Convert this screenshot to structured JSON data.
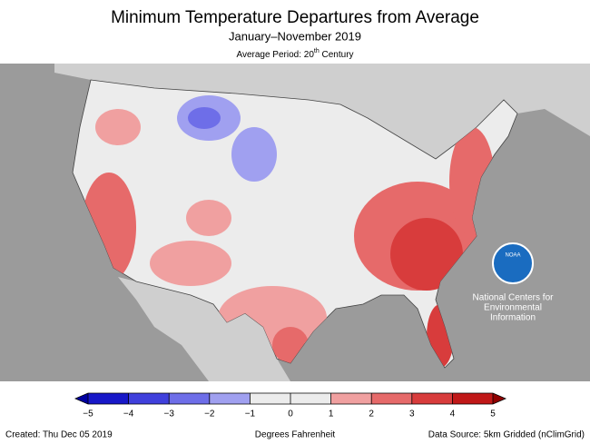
{
  "header": {
    "title": "Minimum Temperature Departures from Average",
    "subtitle": "January–November 2019",
    "period": {
      "prefix": "Average Period: 20",
      "superscript": "th",
      "suffix": " Century"
    }
  },
  "logo": {
    "badge": "NOAA",
    "lines": [
      "National Centers for",
      "Environmental",
      "Information"
    ]
  },
  "legend": {
    "label": "Degrees Fahrenheit",
    "ticks": [
      {
        "value": -5,
        "label": "−5"
      },
      {
        "value": -4,
        "label": "−4"
      },
      {
        "value": -3,
        "label": "−3"
      },
      {
        "value": -2,
        "label": "−2"
      },
      {
        "value": -1,
        "label": "−1"
      },
      0,
      1,
      2,
      3,
      4,
      5
    ],
    "colors": [
      "#1818c8",
      "#4040dc",
      "#6e6ee8",
      "#a0a0f0",
      "#ececec",
      "#ececec",
      "#f0a0a0",
      "#e66a6a",
      "#d83c3c",
      "#c01818"
    ],
    "under_color": "#0000a0",
    "over_color": "#900000"
  },
  "footer": {
    "created": "Created: Thu Dec 05 2019",
    "source": "Data Source: 5km Gridded (nClimGrid)"
  }
}
